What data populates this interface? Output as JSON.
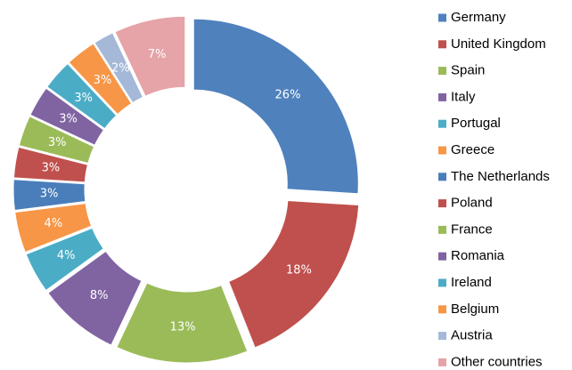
{
  "chart_data": {
    "type": "doughnut",
    "categories": [
      "Germany",
      "United Kingdom",
      "Spain",
      "Italy",
      "Portugal",
      "Greece",
      "The Netherlands",
      "Poland",
      "France",
      "Romania",
      "Ireland",
      "Belgium",
      "Austria",
      "Other countries"
    ],
    "values": [
      26,
      18,
      13,
      8,
      4,
      4,
      3,
      3,
      3,
      3,
      3,
      3,
      2,
      7
    ],
    "value_labels": [
      "26%",
      "18%",
      "13%",
      "8%",
      "4%",
      "4%",
      "3%",
      "3%",
      "3%",
      "3%",
      "3%",
      "3%",
      "2%",
      "7%"
    ],
    "colors": [
      "#4f81bd",
      "#c0504d",
      "#9bbb59",
      "#8064a2",
      "#4bacc6",
      "#f79646",
      "#4a7ebb",
      "#c0504d",
      "#9bbb59",
      "#8064a2",
      "#4bacc6",
      "#f79646",
      "#a5b8d8",
      "#e6a3a8"
    ],
    "legend": "right"
  }
}
